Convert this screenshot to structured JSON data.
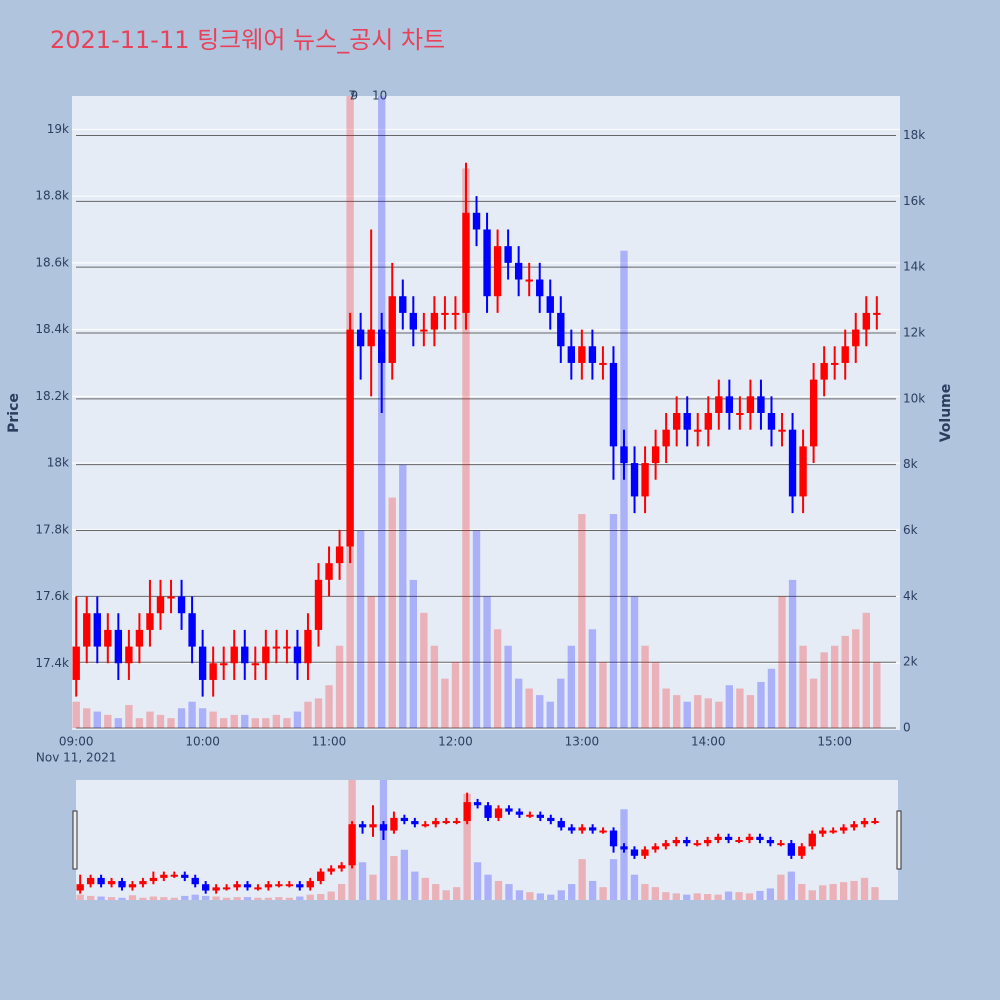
{
  "chart_data": {
    "type": "candlestick",
    "title": "2021-11-11 팅크웨어 뉴스_공시 차트",
    "ylabel": "Price",
    "y2label": "Volume",
    "increasing_color": "#ff0000",
    "decreasing_color": "#0000ff",
    "x": [
      "09:00",
      "09:05",
      "09:10",
      "09:15",
      "09:20",
      "09:25",
      "09:30",
      "09:35",
      "09:40",
      "09:45",
      "09:50",
      "09:55",
      "10:00",
      "10:05",
      "10:10",
      "10:15",
      "10:20",
      "10:25",
      "10:30",
      "10:35",
      "10:40",
      "10:45",
      "10:50",
      "10:55",
      "11:00",
      "11:05",
      "11:10",
      "11:15",
      "11:20",
      "11:25",
      "11:30",
      "11:35",
      "11:40",
      "11:45",
      "11:50",
      "11:55",
      "12:00",
      "12:05",
      "12:10",
      "12:15",
      "12:20",
      "12:25",
      "12:30",
      "12:35",
      "12:40",
      "12:45",
      "12:50",
      "12:55",
      "13:00",
      "13:05",
      "13:10",
      "13:15",
      "13:20",
      "13:25",
      "13:30",
      "13:35",
      "13:40",
      "13:45",
      "13:50",
      "13:55",
      "14:00",
      "14:05",
      "14:10",
      "14:15",
      "14:20",
      "14:25",
      "14:30",
      "14:35",
      "14:40",
      "14:45",
      "14:50",
      "14:55",
      "15:00",
      "15:05",
      "15:10",
      "15:15",
      "15:20"
    ],
    "open": [
      17350,
      17450,
      17550,
      17450,
      17500,
      17400,
      17450,
      17500,
      17550,
      17600,
      17600,
      17550,
      17450,
      17350,
      17400,
      17400,
      17450,
      17400,
      17400,
      17450,
      17450,
      17450,
      17400,
      17500,
      17650,
      17700,
      17750,
      18400,
      18350,
      18400,
      18300,
      18500,
      18450,
      18400,
      18400,
      18450,
      18450,
      18450,
      18750,
      18700,
      18500,
      18650,
      18600,
      18550,
      18550,
      18500,
      18450,
      18350,
      18300,
      18350,
      18300,
      18300,
      18050,
      18000,
      17900,
      18000,
      18050,
      18100,
      18150,
      18100,
      18100,
      18150,
      18200,
      18150,
      18150,
      18200,
      18150,
      18100,
      18100,
      17900,
      18050,
      18250,
      18300,
      18300,
      18350,
      18400,
      18450
    ],
    "high": [
      17600,
      17600,
      17600,
      17550,
      17550,
      17500,
      17550,
      17650,
      17650,
      17650,
      17650,
      17600,
      17500,
      17450,
      17450,
      17500,
      17500,
      17450,
      17500,
      17500,
      17500,
      17500,
      17550,
      17700,
      17750,
      17800,
      18450,
      18450,
      18700,
      18450,
      18600,
      18550,
      18500,
      18450,
      18500,
      18500,
      18500,
      18900,
      18800,
      18750,
      18700,
      18700,
      18650,
      18600,
      18600,
      18550,
      18500,
      18400,
      18400,
      18400,
      18350,
      18350,
      18100,
      18050,
      18050,
      18100,
      18150,
      18200,
      18200,
      18150,
      18200,
      18250,
      18250,
      18200,
      18250,
      18250,
      18200,
      18150,
      18150,
      18100,
      18300,
      18350,
      18350,
      18400,
      18450,
      18500,
      18500
    ],
    "low": [
      17300,
      17400,
      17400,
      17400,
      17350,
      17350,
      17400,
      17450,
      17500,
      17550,
      17500,
      17400,
      17300,
      17300,
      17350,
      17350,
      17350,
      17350,
      17350,
      17400,
      17400,
      17350,
      17350,
      17450,
      17600,
      17650,
      17700,
      18250,
      18200,
      18150,
      18250,
      18400,
      18350,
      18350,
      18350,
      18400,
      18400,
      18400,
      18650,
      18450,
      18450,
      18550,
      18500,
      18500,
      18450,
      18400,
      18300,
      18250,
      18250,
      18250,
      18250,
      17950,
      17950,
      17850,
      17850,
      17950,
      18000,
      18050,
      18050,
      18050,
      18050,
      18100,
      18100,
      18100,
      18100,
      18100,
      18050,
      18050,
      17850,
      17850,
      18000,
      18200,
      18250,
      18250,
      18300,
      18350,
      18400
    ],
    "close": [
      17450,
      17550,
      17450,
      17500,
      17400,
      17450,
      17500,
      17550,
      17600,
      17600,
      17550,
      17450,
      17350,
      17400,
      17400,
      17450,
      17400,
      17400,
      17450,
      17450,
      17450,
      17400,
      17500,
      17650,
      17700,
      17750,
      18400,
      18350,
      18400,
      18300,
      18500,
      18450,
      18400,
      18400,
      18450,
      18450,
      18450,
      18750,
      18700,
      18500,
      18650,
      18600,
      18550,
      18550,
      18500,
      18450,
      18350,
      18300,
      18350,
      18300,
      18300,
      18050,
      18000,
      17900,
      18000,
      18050,
      18100,
      18150,
      18100,
      18100,
      18150,
      18200,
      18150,
      18150,
      18200,
      18150,
      18100,
      18100,
      17900,
      18050,
      18250,
      18300,
      18300,
      18350,
      18400,
      18450,
      18450
    ],
    "volume": [
      800,
      600,
      500,
      400,
      300,
      700,
      300,
      500,
      400,
      300,
      600,
      800,
      600,
      500,
      300,
      400,
      400,
      300,
      300,
      400,
      300,
      500,
      800,
      900,
      1300,
      2500,
      19500,
      6000,
      4000,
      19500,
      7000,
      8000,
      4500,
      3500,
      2500,
      1500,
      2000,
      17000,
      6000,
      4000,
      3000,
      2500,
      1500,
      1200,
      1000,
      800,
      1500,
      2500,
      6500,
      3000,
      2000,
      6500,
      14500,
      4000,
      2500,
      2000,
      1200,
      1000,
      800,
      1000,
      900,
      800,
      1300,
      1200,
      1000,
      1400,
      1800,
      4000,
      4500,
      2500,
      1500,
      2300,
      2500,
      2800,
      3000,
      3500,
      2000
    ],
    "xlim": [
      "08:58",
      "15:31"
    ],
    "xticks": [
      "09:00",
      "10:00",
      "11:00",
      "12:00",
      "13:00",
      "14:00",
      "15:00"
    ],
    "xtick_sublabel": "Nov 11, 2021",
    "ylim": [
      17200,
      19100
    ],
    "yticks": [
      {
        "value": 17400,
        "label": "17.4k"
      },
      {
        "value": 17600,
        "label": "17.6k"
      },
      {
        "value": 17800,
        "label": "17.8k"
      },
      {
        "value": 18000,
        "label": "18k"
      },
      {
        "value": 18200,
        "label": "18.2k"
      },
      {
        "value": 18400,
        "label": "18.4k"
      },
      {
        "value": 18600,
        "label": "18.6k"
      },
      {
        "value": 18800,
        "label": "18.8k"
      },
      {
        "value": 19000,
        "label": "19k"
      }
    ],
    "y2lim": [
      -60,
      19200
    ],
    "y2ticks": [
      0,
      {
        "value": 2000,
        "label": "2k"
      },
      {
        "value": 4000,
        "label": "4k"
      },
      {
        "value": 6000,
        "label": "6k"
      },
      {
        "value": 8000,
        "label": "8k"
      },
      {
        "value": 10000,
        "label": "10k"
      },
      {
        "value": 12000,
        "label": "12k"
      },
      {
        "value": 14000,
        "label": "14k"
      },
      {
        "value": 16000,
        "label": "16k"
      },
      {
        "value": 18000,
        "label": "18k"
      }
    ],
    "annotations": [
      {
        "x": "11:11",
        "text": "7"
      },
      {
        "x": "11:12",
        "text": "9"
      },
      {
        "x": "11:24",
        "text": "10"
      }
    ],
    "rangeslider": true
  }
}
